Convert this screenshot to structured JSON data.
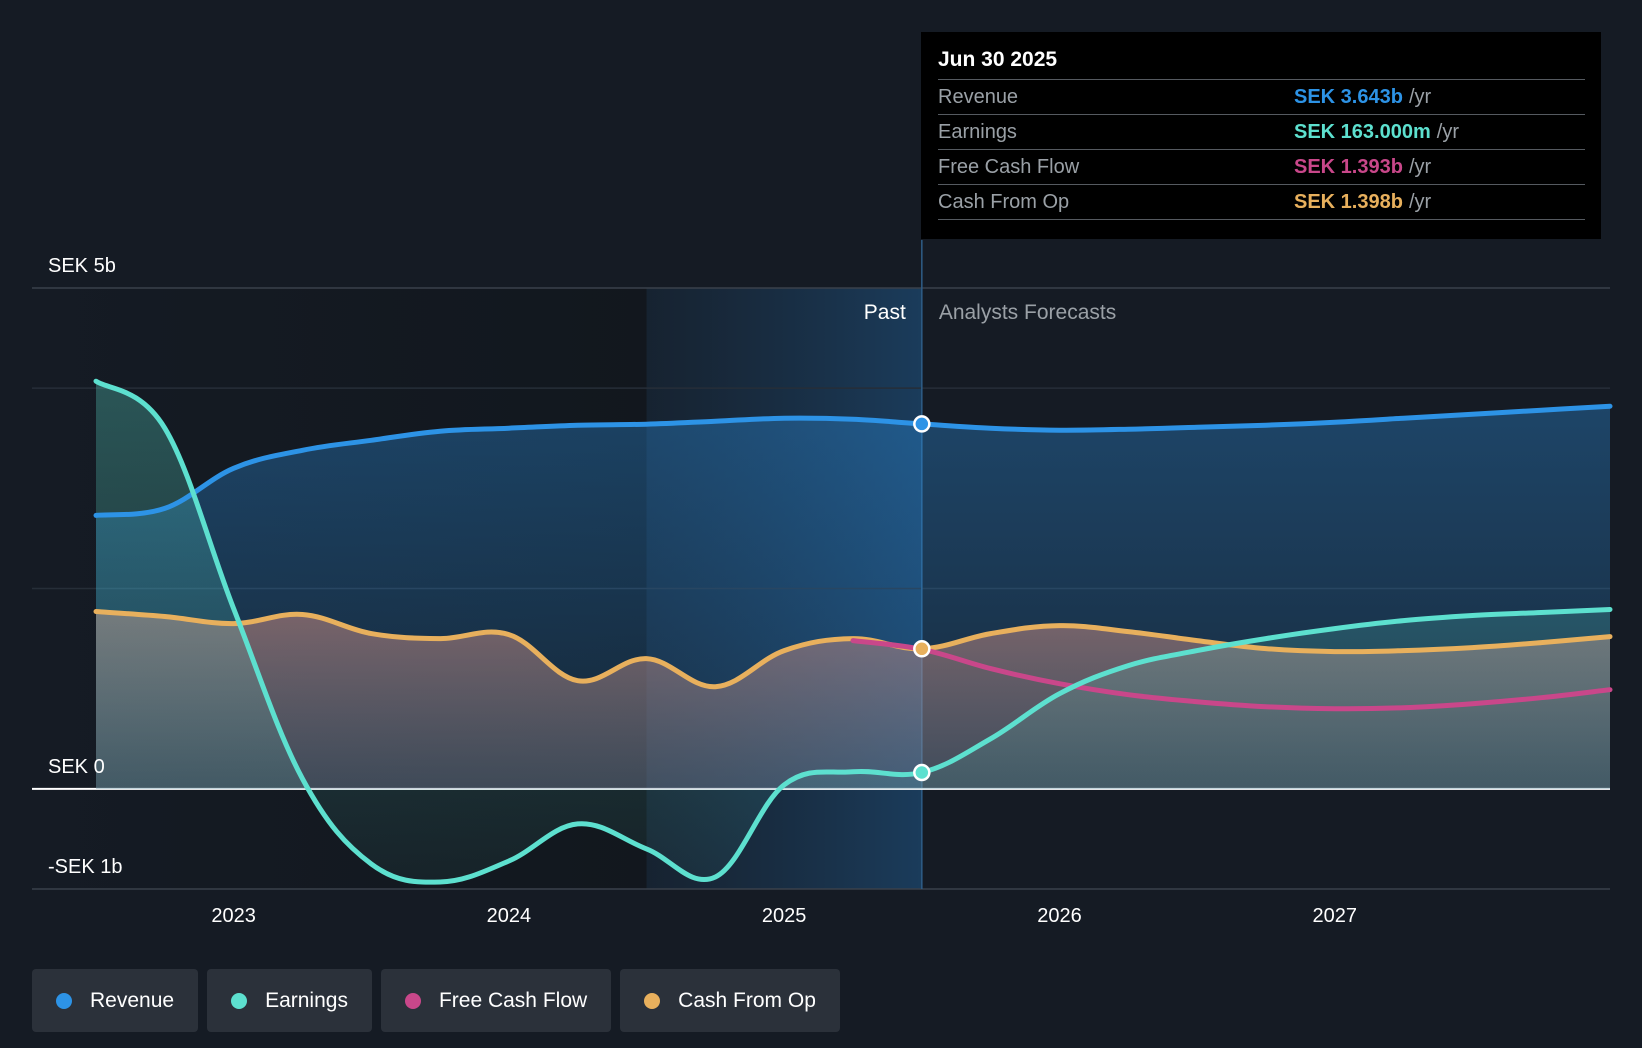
{
  "colors": {
    "revenue": "#2d93e6",
    "earnings": "#5de0cf",
    "fcf": "#c9478a",
    "cfo": "#e8b05d"
  },
  "tooltip": {
    "date": "Jun 30 2025",
    "rows": [
      {
        "label": "Revenue",
        "value": "SEK 3.643b",
        "unit": "/yr"
      },
      {
        "label": "Earnings",
        "value": "SEK 163.000m",
        "unit": "/yr"
      },
      {
        "label": "Free Cash Flow",
        "value": "SEK 1.393b",
        "unit": "/yr"
      },
      {
        "label": "Cash From Op",
        "value": "SEK 1.398b",
        "unit": "/yr"
      }
    ]
  },
  "legend": [
    "Revenue",
    "Earnings",
    "Free Cash Flow",
    "Cash From Op"
  ],
  "chart_data": {
    "type": "area",
    "title": "",
    "xlabel": "",
    "ylabel": "",
    "ylim": [
      -1,
      5
    ],
    "xlim": [
      2022.5,
      2028.0
    ],
    "y_tick_labels": [
      {
        "value": 5,
        "label": "SEK 5b"
      },
      {
        "value": 0,
        "label": "SEK 0"
      },
      {
        "value": -1,
        "label": "-SEK 1b"
      }
    ],
    "x_tick_labels": [
      {
        "value": 2023,
        "label": "2023"
      },
      {
        "value": 2024,
        "label": "2024"
      },
      {
        "value": 2025,
        "label": "2025"
      },
      {
        "value": 2026,
        "label": "2026"
      },
      {
        "value": 2027,
        "label": "2027"
      }
    ],
    "past_label": "Past",
    "forecast_label": "Analysts Forecasts",
    "divider_x": 2025.5,
    "highlight_start_x": 2024.5,
    "series": [
      {
        "name": "Revenue",
        "key": "revenue",
        "points": [
          [
            2022.5,
            2.73
          ],
          [
            2022.75,
            2.8
          ],
          [
            2023.0,
            3.2
          ],
          [
            2023.25,
            3.38
          ],
          [
            2023.5,
            3.48
          ],
          [
            2023.75,
            3.57
          ],
          [
            2024.0,
            3.6
          ],
          [
            2024.25,
            3.63
          ],
          [
            2024.5,
            3.64
          ],
          [
            2024.75,
            3.67
          ],
          [
            2025.0,
            3.7
          ],
          [
            2025.25,
            3.69
          ],
          [
            2025.5,
            3.643
          ],
          [
            2025.75,
            3.6
          ],
          [
            2026.0,
            3.58
          ],
          [
            2026.25,
            3.59
          ],
          [
            2026.5,
            3.61
          ],
          [
            2026.75,
            3.63
          ],
          [
            2027.0,
            3.66
          ],
          [
            2027.25,
            3.7
          ],
          [
            2027.5,
            3.74
          ],
          [
            2027.75,
            3.78
          ],
          [
            2028.0,
            3.82
          ]
        ]
      },
      {
        "name": "Earnings",
        "key": "earnings",
        "points": [
          [
            2022.5,
            4.07
          ],
          [
            2022.75,
            3.6
          ],
          [
            2023.0,
            1.8
          ],
          [
            2023.25,
            0.1
          ],
          [
            2023.5,
            -0.75
          ],
          [
            2023.75,
            -0.93
          ],
          [
            2024.0,
            -0.72
          ],
          [
            2024.25,
            -0.35
          ],
          [
            2024.5,
            -0.6
          ],
          [
            2024.75,
            -0.88
          ],
          [
            2025.0,
            0.04
          ],
          [
            2025.25,
            0.17
          ],
          [
            2025.5,
            0.163
          ],
          [
            2025.75,
            0.5
          ],
          [
            2026.0,
            0.95
          ],
          [
            2026.25,
            1.23
          ],
          [
            2026.5,
            1.38
          ],
          [
            2026.75,
            1.5
          ],
          [
            2027.0,
            1.6
          ],
          [
            2027.25,
            1.68
          ],
          [
            2027.5,
            1.73
          ],
          [
            2027.75,
            1.76
          ],
          [
            2028.0,
            1.79
          ]
        ]
      },
      {
        "name": "Free Cash Flow",
        "key": "fcf",
        "points": [
          [
            2025.25,
            1.48
          ],
          [
            2025.5,
            1.393
          ],
          [
            2025.75,
            1.2
          ],
          [
            2026.0,
            1.05
          ],
          [
            2026.25,
            0.94
          ],
          [
            2026.5,
            0.87
          ],
          [
            2026.75,
            0.82
          ],
          [
            2027.0,
            0.8
          ],
          [
            2027.25,
            0.81
          ],
          [
            2027.5,
            0.85
          ],
          [
            2027.75,
            0.91
          ],
          [
            2028.0,
            0.99
          ]
        ]
      },
      {
        "name": "Cash From Op",
        "key": "cfo",
        "points": [
          [
            2022.5,
            1.77
          ],
          [
            2022.75,
            1.72
          ],
          [
            2023.0,
            1.65
          ],
          [
            2023.25,
            1.74
          ],
          [
            2023.5,
            1.55
          ],
          [
            2023.75,
            1.5
          ],
          [
            2024.0,
            1.54
          ],
          [
            2024.25,
            1.08
          ],
          [
            2024.5,
            1.3
          ],
          [
            2024.75,
            1.02
          ],
          [
            2025.0,
            1.38
          ],
          [
            2025.25,
            1.5
          ],
          [
            2025.5,
            1.398
          ],
          [
            2025.75,
            1.55
          ],
          [
            2026.0,
            1.63
          ],
          [
            2026.25,
            1.57
          ],
          [
            2026.5,
            1.48
          ],
          [
            2026.75,
            1.4
          ],
          [
            2027.0,
            1.37
          ],
          [
            2027.25,
            1.38
          ],
          [
            2027.5,
            1.41
          ],
          [
            2027.75,
            1.46
          ],
          [
            2028.0,
            1.52
          ]
        ]
      }
    ]
  }
}
